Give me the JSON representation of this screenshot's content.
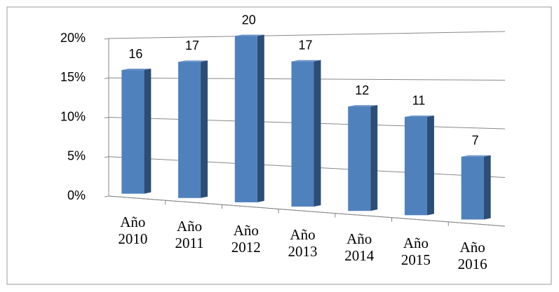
{
  "chart_data": {
    "type": "bar3d",
    "categories": [
      "Año 2010",
      "Año 2011",
      "Año 2012",
      "Año 2013",
      "Año 2014",
      "Año 2015",
      "Año 2016"
    ],
    "values": [
      16,
      17,
      20,
      17,
      12,
      11,
      7
    ],
    "color": "#4f81bd",
    "ylim": [
      0,
      20
    ],
    "yticks": [
      {
        "value": 0,
        "label": "0%"
      },
      {
        "value": 5,
        "label": "5%"
      },
      {
        "value": 10,
        "label": "10%"
      },
      {
        "value": 15,
        "label": "15%"
      },
      {
        "value": 20,
        "label": "20%"
      }
    ],
    "grid": true
  }
}
